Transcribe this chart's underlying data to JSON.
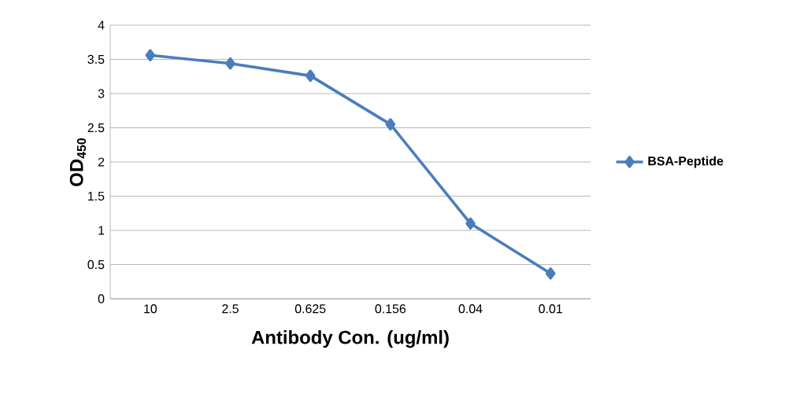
{
  "chart_data": {
    "type": "line",
    "xlabel": "Antibody Con. (ug/ml)",
    "ylabel": "OD$_{450}$",
    "categories": [
      "10",
      "2.5",
      "0.625",
      "0.156",
      "0.04",
      "0.01"
    ],
    "series": [
      {
        "name": "BSA-Peptide",
        "color": "#4a7ebb",
        "values": [
          3.56,
          3.44,
          3.26,
          2.55,
          1.1,
          0.37
        ]
      }
    ],
    "ylim": [
      0,
      4
    ],
    "yticks": [
      0,
      0.5,
      1,
      1.5,
      2,
      2.5,
      3,
      3.5,
      4
    ],
    "grid": "y",
    "legend": "right",
    "marker": "diamond",
    "line_style": "solid"
  }
}
